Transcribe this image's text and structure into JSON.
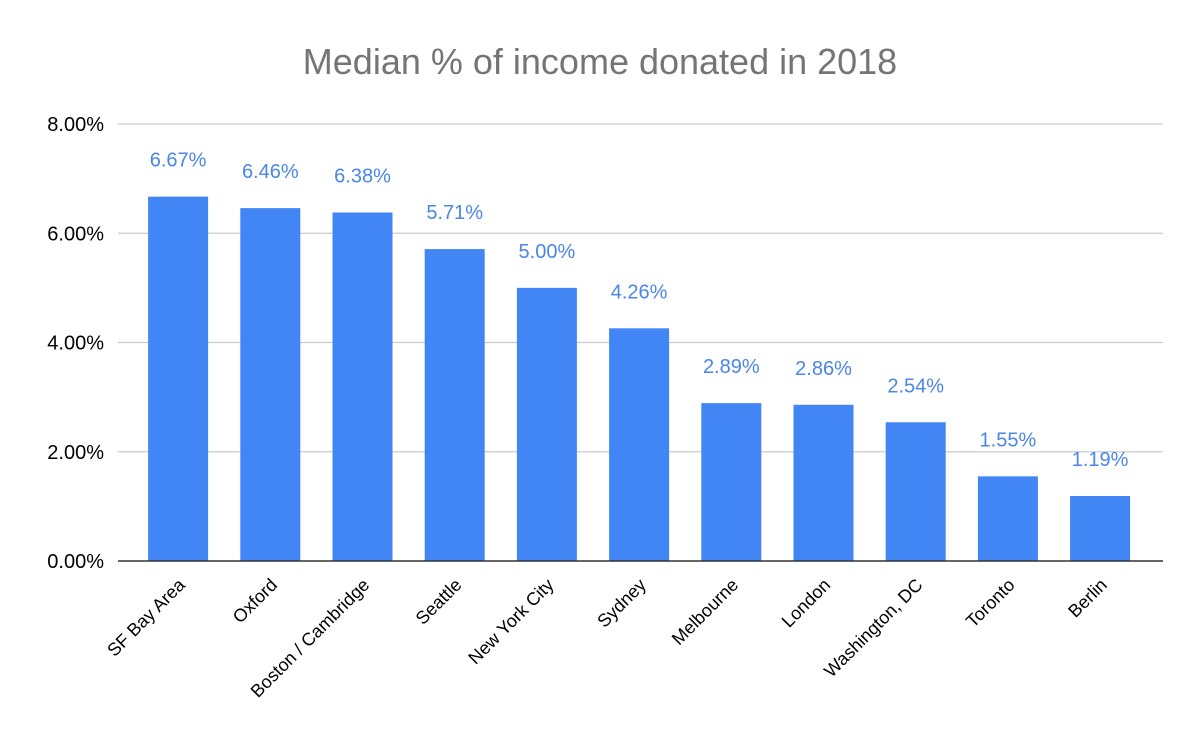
{
  "chart_data": {
    "type": "bar",
    "title": "Median % of income donated in 2018",
    "xlabel": "",
    "ylabel": "",
    "ylim": [
      0,
      8
    ],
    "yticks": [
      0,
      2,
      4,
      6,
      8
    ],
    "ytick_labels": [
      "0.00%",
      "2.00%",
      "4.00%",
      "6.00%",
      "8.00%"
    ],
    "grid": true,
    "legend": "none",
    "bar_color": "#4285f4",
    "label_color": "#4a86e8",
    "categories": [
      "SF Bay Area",
      "Oxford",
      "Boston / Cambridge",
      "Seattle",
      "New York City",
      "Sydney",
      "Melbourne",
      "London",
      "Washington, DC",
      "Toronto",
      "Berlin"
    ],
    "values": [
      6.67,
      6.46,
      6.38,
      5.71,
      5.0,
      4.26,
      2.89,
      2.86,
      2.54,
      1.55,
      1.19
    ],
    "data_labels": [
      "6.67%",
      "6.46%",
      "6.38%",
      "5.71%",
      "5.00%",
      "4.26%",
      "2.89%",
      "2.86%",
      "2.54%",
      "1.55%",
      "1.19%"
    ]
  }
}
